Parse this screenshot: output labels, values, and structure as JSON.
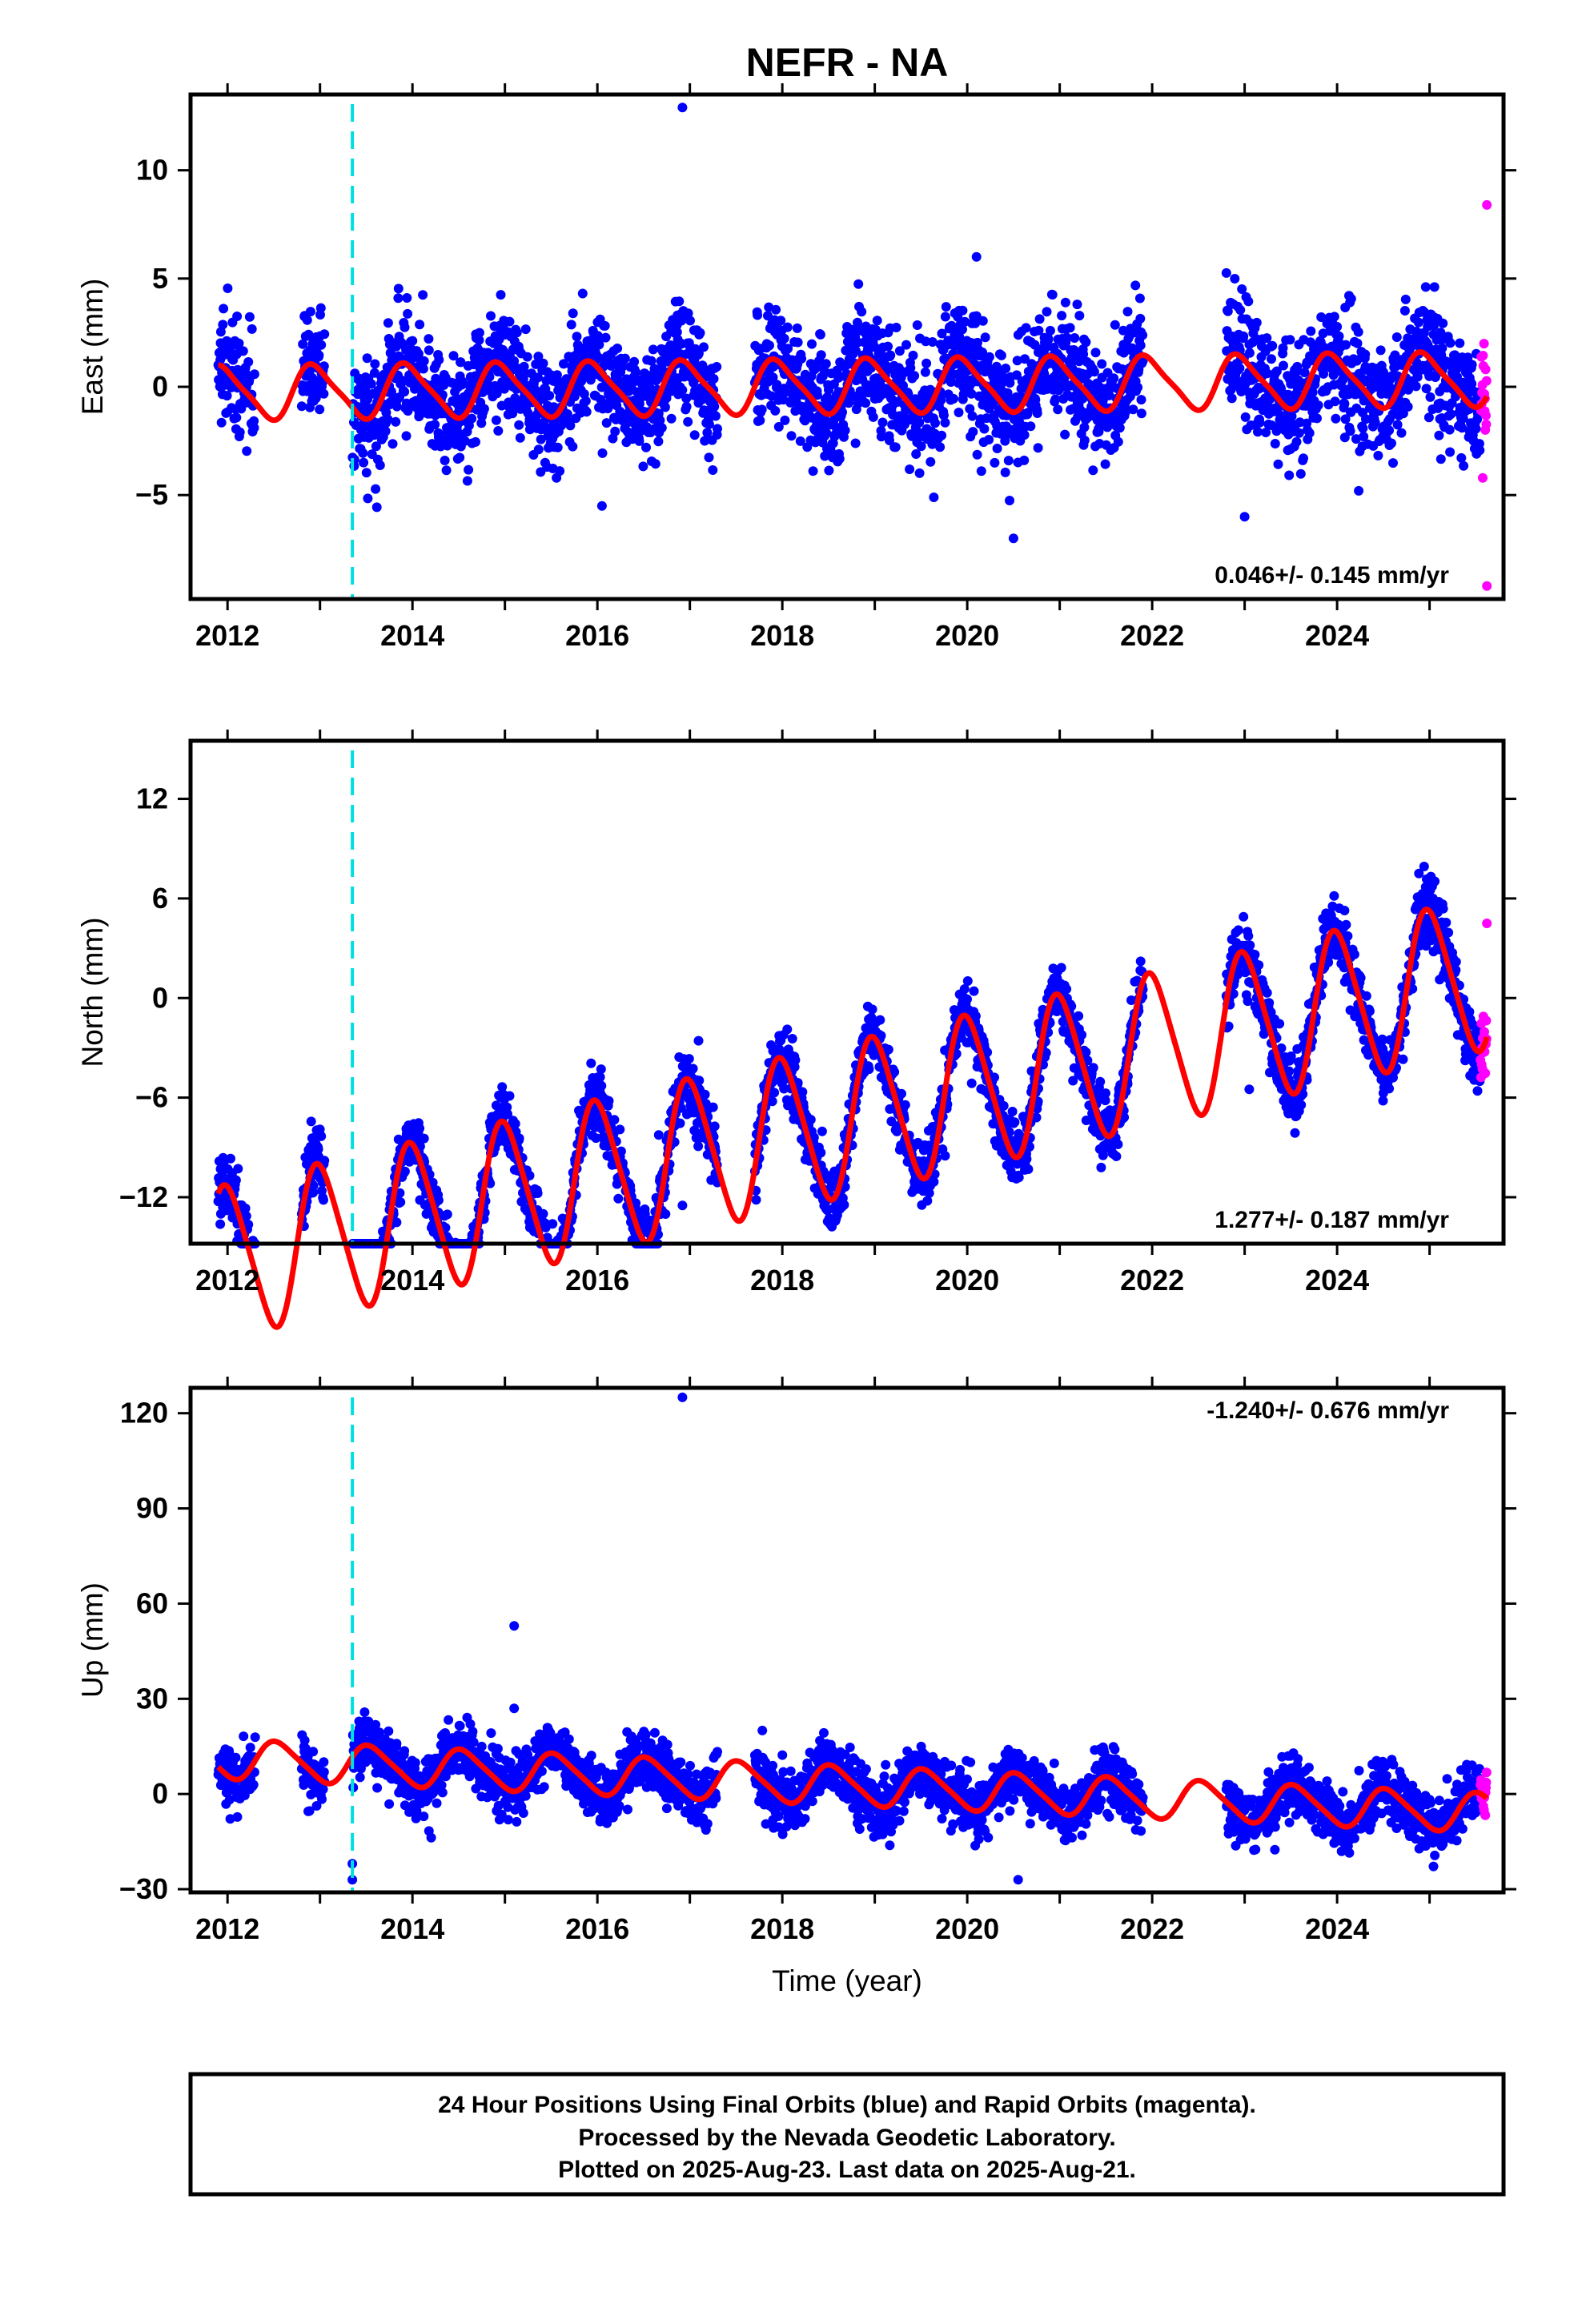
{
  "title": "NEFR - NA",
  "colors": {
    "final": "#0000ff",
    "rapid": "#ff00ff",
    "model": "#ff0000",
    "event": "#00e0e0",
    "frame": "#000000"
  },
  "chart_data": [
    {
      "type": "scatter",
      "ylabel": "East (mm)",
      "xlim": [
        2011.6,
        2025.8
      ],
      "ylim": [
        -9.8,
        13.5
      ],
      "xticks": [
        2012,
        2014,
        2016,
        2018,
        2020,
        2022,
        2024
      ],
      "yticks": [
        -5,
        0,
        5,
        10
      ],
      "ytick_labels": [
        "−5",
        "0",
        "5",
        "10"
      ],
      "rate_label": "0.046+/- 0.145 mm/yr",
      "rate_position": "bottom-right",
      "event_line_x": 2013.35,
      "data_start": 2011.9,
      "data_end": 2025.62,
      "rapid_start": 2025.55,
      "gaps": [
        [
          2012.3,
          2012.8
        ],
        [
          2013.05,
          2013.35
        ],
        [
          2017.3,
          2017.7
        ],
        [
          2021.9,
          2022.8
        ]
      ],
      "trend": {
        "rate_mm_per_yr": 0.046,
        "offset": 0.0,
        "annual_amplitude": 1.2,
        "phase": 0.3,
        "semiannual_amplitude": 0.25,
        "scatter_sd": 1.3
      },
      "outliers": [
        [
          2016.92,
          12.9
        ],
        [
          2020.1,
          6.0
        ],
        [
          2020.5,
          -7.0
        ],
        [
          2016.05,
          -5.5
        ],
        [
          2023.0,
          -6.0
        ],
        [
          2025.62,
          8.4
        ],
        [
          2025.62,
          -9.2
        ]
      ]
    },
    {
      "type": "scatter",
      "ylabel": "North (mm)",
      "xlim": [
        2011.6,
        2025.8
      ],
      "ylim": [
        -14.8,
        15.5
      ],
      "xticks": [
        2012,
        2014,
        2016,
        2018,
        2020,
        2022,
        2024
      ],
      "yticks": [
        -12,
        -6,
        0,
        6,
        12
      ],
      "ytick_labels": [
        "−12",
        "−6",
        "0",
        "6",
        "12"
      ],
      "rate_label": "1.277+/- 0.187 mm/yr",
      "rate_position": "bottom-right",
      "event_line_x": 2013.35,
      "data_start": 2011.9,
      "data_end": 2025.62,
      "rapid_start": 2025.55,
      "gaps": [
        [
          2012.3,
          2012.8
        ],
        [
          2013.05,
          2013.35
        ],
        [
          2017.3,
          2017.7
        ],
        [
          2021.9,
          2022.8
        ]
      ],
      "trend": {
        "rate_mm_per_yr": 1.277,
        "offset": -8.2,
        "annual_amplitude": 4.5,
        "phase": 0.25,
        "semiannual_amplitude": 0.6,
        "scatter_sd": 1.0
      },
      "outliers": [
        [
          2016.92,
          -12.5
        ],
        [
          2023.05,
          -5.5
        ],
        [
          2025.62,
          4.5
        ]
      ]
    },
    {
      "type": "scatter",
      "ylabel": "Up (mm)",
      "xlabel": "Time (year)",
      "xlim": [
        2011.6,
        2025.8
      ],
      "ylim": [
        -31,
        128
      ],
      "xticks": [
        2012,
        2014,
        2016,
        2018,
        2020,
        2022,
        2024
      ],
      "yticks": [
        -30,
        0,
        30,
        60,
        90,
        120
      ],
      "ytick_labels": [
        "−30",
        "0",
        "30",
        "60",
        "90",
        "120"
      ],
      "rate_label": "-1.240+/- 0.676 mm/yr",
      "rate_position": "top-right",
      "event_line_x": 2013.35,
      "data_start": 2011.9,
      "data_end": 2025.62,
      "rapid_start": 2025.55,
      "gaps": [
        [
          2012.3,
          2012.8
        ],
        [
          2013.05,
          2013.35
        ],
        [
          2017.3,
          2017.7
        ],
        [
          2021.9,
          2022.8
        ]
      ],
      "trend": {
        "rate_mm_per_yr": -1.24,
        "offset": 3.5,
        "annual_amplitude": 6.0,
        "phase": 0.7,
        "semiannual_amplitude": 1.0,
        "scatter_sd": 4.5
      },
      "outliers": [
        [
          2016.92,
          125
        ],
        [
          2015.1,
          53
        ],
        [
          2015.1,
          27
        ],
        [
          2013.35,
          -22
        ],
        [
          2013.35,
          -27
        ],
        [
          2020.55,
          -27
        ]
      ]
    }
  ],
  "footer": {
    "line1": "24 Hour Positions Using Final Orbits (blue) and Rapid Orbits (magenta).",
    "line2": "Processed by the Nevada Geodetic Laboratory.",
    "line3": "Plotted on 2025-Aug-23. Last data on 2025-Aug-21."
  }
}
